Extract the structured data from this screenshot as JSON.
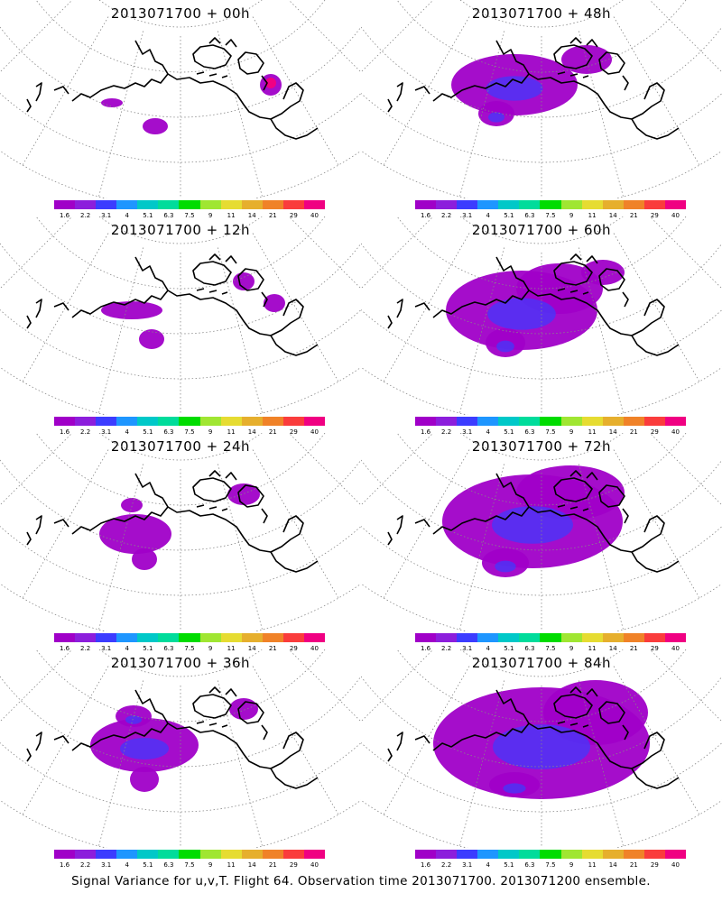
{
  "panels": [
    {
      "title": "2013071700 + 00h",
      "level": 0
    },
    {
      "title": "2013071700 + 48h",
      "level": 4
    },
    {
      "title": "2013071700 + 12h",
      "level": 1
    },
    {
      "title": "2013071700 + 60h",
      "level": 5
    },
    {
      "title": "2013071700 + 24h",
      "level": 2
    },
    {
      "title": "2013071700 + 72h",
      "level": 6
    },
    {
      "title": "2013071700 + 36h",
      "level": 3
    },
    {
      "title": "2013071700 + 84h",
      "level": 7
    }
  ],
  "colorbar": {
    "colors": [
      "#a000c8",
      "#8c1edc",
      "#3c3cff",
      "#1e96ff",
      "#00c8c8",
      "#00dc9b",
      "#00dc00",
      "#a0e632",
      "#e6dc32",
      "#e6af2d",
      "#f08228",
      "#fa3c3c",
      "#f00082"
    ],
    "labels": [
      "1.6",
      "2.2",
      "3.1",
      "4",
      "5.1",
      "6.3",
      "7.5",
      "9",
      "11",
      "14",
      "21",
      "29",
      "40"
    ]
  },
  "footer": "Signal Variance for u,v,T. Flight 64. Observation time 2013071700. 2013071200 ensemble."
}
